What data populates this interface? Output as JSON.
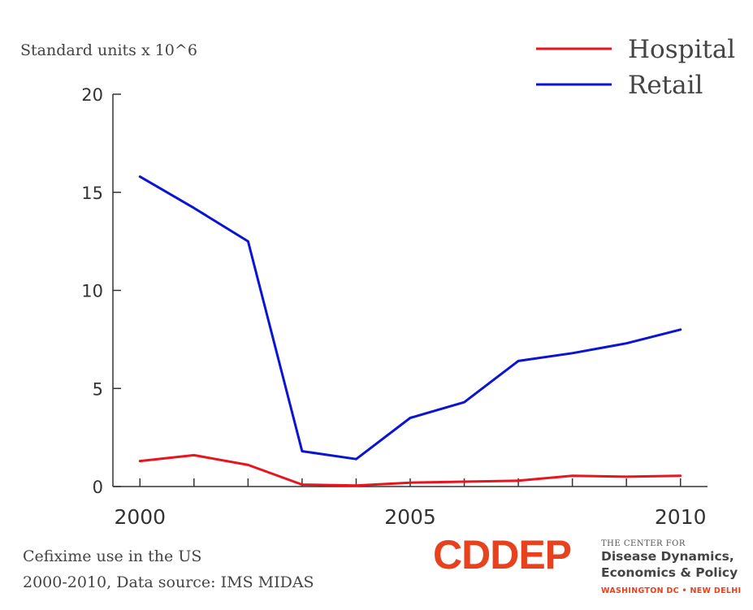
{
  "chart_data": {
    "type": "line",
    "ylabel": "Standard units x 10^6",
    "x": [
      2000,
      2001,
      2002,
      2003,
      2004,
      2005,
      2006,
      2007,
      2008,
      2009,
      2010
    ],
    "x_ticks": [
      "2000",
      "2005",
      "2010"
    ],
    "y_ticks": [
      "0",
      "5",
      "10",
      "15",
      "20"
    ],
    "xlim": [
      1999.5,
      2010.5
    ],
    "ylim": [
      0,
      20
    ],
    "grid": false,
    "legend_position": "top-right",
    "series": [
      {
        "name": "Hospital",
        "color": "#e8141e",
        "values": [
          1.3,
          1.6,
          1.1,
          0.1,
          0.05,
          0.2,
          0.25,
          0.3,
          0.55,
          0.5,
          0.55
        ]
      },
      {
        "name": "Retail",
        "color": "#0a14d2",
        "values": [
          15.8,
          14.2,
          12.5,
          1.8,
          1.4,
          3.5,
          4.3,
          6.4,
          6.8,
          7.3,
          8.0
        ]
      }
    ]
  },
  "caption": {
    "line1": "Cefixime use in the US",
    "line2": "2000-2010, Data source: IMS MIDAS"
  },
  "logo": {
    "mark": "CDDEP",
    "mark_color": "#e8411e",
    "small": "THE CENTER FOR",
    "line1": "Disease Dynamics,",
    "line2": "Economics & Policy",
    "location": "WASHINGTON DC • NEW DELHI",
    "location_color": "#e8411e"
  }
}
